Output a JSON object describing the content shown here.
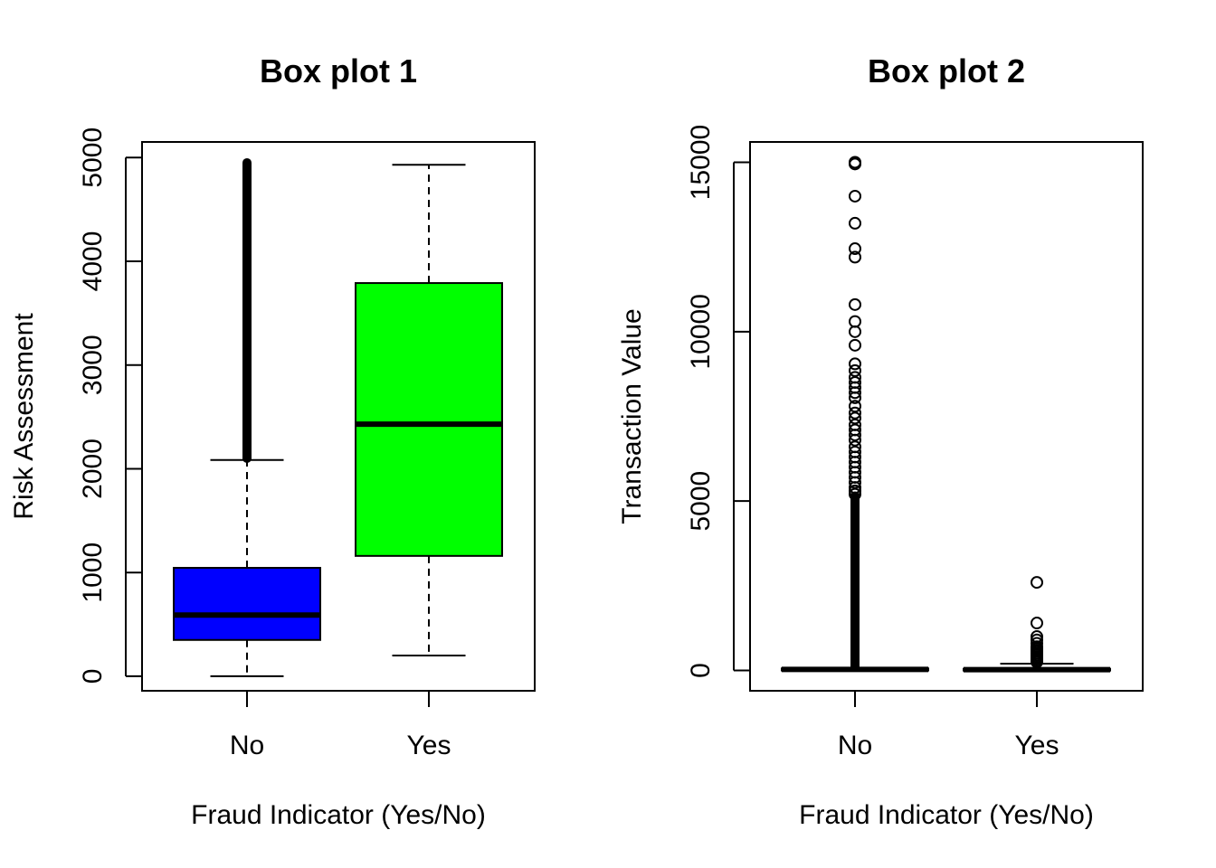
{
  "chart_data": [
    {
      "type": "box",
      "title": "Box plot 1",
      "xlabel": "Fraud Indicator (Yes/No)",
      "ylabel": "Risk Assessment",
      "categories": [
        "No",
        "Yes"
      ],
      "ylim": [
        -140,
        5150
      ],
      "yticks": [
        0,
        1000,
        2000,
        3000,
        4000,
        5000
      ],
      "boxes": [
        {
          "category": "No",
          "color": "#0000ff",
          "whisker_low": 0,
          "q1": 350,
          "median": 590,
          "q3": 1045,
          "whisker_high": 2085,
          "outliers_dense": [
            2100,
            4950
          ]
        },
        {
          "category": "Yes",
          "color": "#00ff00",
          "whisker_low": 200,
          "q1": 1160,
          "median": 2430,
          "q3": 3790,
          "whisker_high": 4930,
          "outliers_dense": null
        }
      ]
    },
    {
      "type": "box",
      "title": "Box plot 2",
      "xlabel": "Fraud Indicator (Yes/No)",
      "ylabel": "Transaction Value",
      "categories": [
        "No",
        "Yes"
      ],
      "ylim": [
        -600,
        15600
      ],
      "yticks": [
        0,
        5000,
        10000,
        15000
      ],
      "boxes": [
        {
          "category": "No",
          "color": "#ffffff",
          "whisker_low": 0,
          "q1": 0,
          "median": 30,
          "q3": 60,
          "whisker_high": 80,
          "outliers": [
            15000,
            14950,
            14000,
            13200,
            12450,
            12200,
            10800,
            10300,
            10000,
            9600,
            9050,
            8850,
            8650,
            8500,
            8350,
            8200,
            8050,
            7800,
            7600,
            7450,
            7250,
            7100,
            6950,
            6800,
            6600,
            6450,
            6300,
            6150,
            6000,
            5850,
            5700,
            5550,
            5400,
            5300,
            5200
          ],
          "outliers_dense": [
            100,
            5150
          ]
        },
        {
          "category": "Yes",
          "color": "#ffffff",
          "whisker_low": 0,
          "q1": 0,
          "median": 25,
          "q3": 50,
          "whisker_high": 200,
          "outliers": [
            2600,
            1400,
            1000,
            900,
            800,
            700,
            650,
            600,
            550,
            500,
            450,
            400,
            350,
            300,
            250
          ],
          "outliers_dense": null
        }
      ]
    }
  ]
}
